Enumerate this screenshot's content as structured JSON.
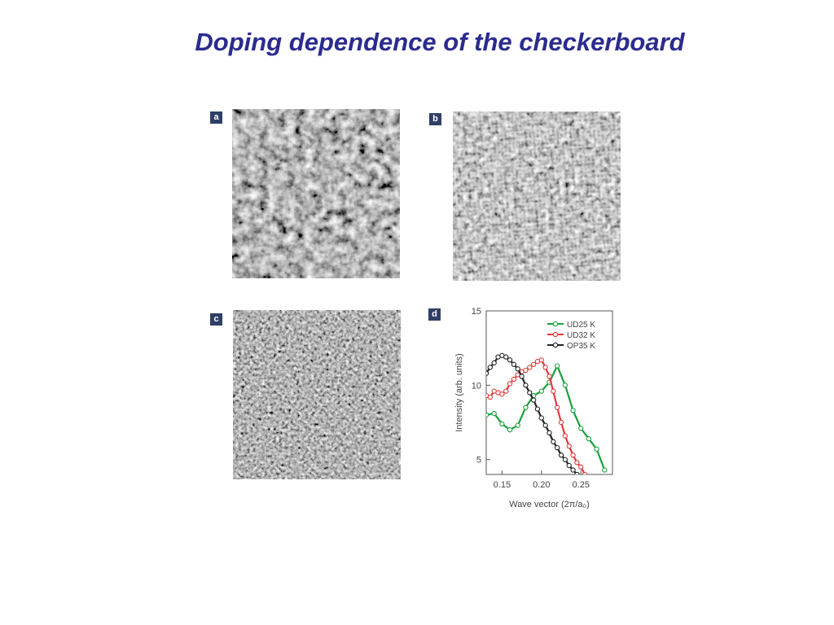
{
  "title": "Doping dependence of the checkerboard",
  "panels": [
    {
      "label": "a",
      "type": "stm-image"
    },
    {
      "label": "b",
      "type": "stm-image"
    },
    {
      "label": "c",
      "type": "stm-image"
    },
    {
      "label": "d",
      "type": "chart"
    }
  ],
  "chart_data": {
    "type": "line",
    "xlabel": "Wave vector (2π/a₀)",
    "ylabel": "Intensity (arb. units)",
    "xlim": [
      0.13,
      0.29
    ],
    "ylim": [
      4,
      15
    ],
    "xticks": [
      "0.15",
      "0.20",
      "0.25"
    ],
    "xtick_values": [
      0.15,
      0.2,
      0.25
    ],
    "yticks": [
      "5",
      "10",
      "15"
    ],
    "ytick_values": [
      5,
      10,
      15
    ],
    "grid": false,
    "legend_position": "top-right",
    "series": [
      {
        "name": "UD25 K",
        "color": "#1aa03c",
        "x": [
          0.13,
          0.14,
          0.15,
          0.16,
          0.17,
          0.18,
          0.19,
          0.2,
          0.21,
          0.22,
          0.23,
          0.24,
          0.25,
          0.26,
          0.27,
          0.28
        ],
        "y": [
          8.0,
          8.1,
          7.4,
          7.0,
          7.3,
          8.5,
          9.3,
          9.6,
          10.2,
          11.3,
          10.0,
          8.3,
          7.1,
          6.4,
          5.7,
          4.3
        ]
      },
      {
        "name": "UD32 K",
        "color": "#e03a3a",
        "x": [
          0.13,
          0.135,
          0.14,
          0.145,
          0.15,
          0.155,
          0.16,
          0.165,
          0.17,
          0.175,
          0.18,
          0.185,
          0.19,
          0.195,
          0.2,
          0.205,
          0.21,
          0.215,
          0.22,
          0.225,
          0.23,
          0.235,
          0.24,
          0.245,
          0.25,
          0.255
        ],
        "y": [
          9.3,
          9.2,
          9.6,
          9.5,
          9.4,
          9.6,
          10.1,
          10.4,
          10.7,
          10.9,
          11.0,
          11.2,
          11.4,
          11.6,
          11.7,
          11.2,
          10.6,
          9.6,
          8.5,
          7.5,
          6.6,
          5.9,
          5.3,
          4.8,
          4.5,
          4.0
        ]
      },
      {
        "name": "OP35 K",
        "color": "#222222",
        "x": [
          0.13,
          0.135,
          0.14,
          0.145,
          0.15,
          0.155,
          0.16,
          0.165,
          0.17,
          0.175,
          0.18,
          0.185,
          0.19,
          0.195,
          0.2,
          0.205,
          0.21,
          0.215,
          0.22,
          0.225,
          0.23,
          0.235,
          0.24,
          0.245
        ],
        "y": [
          10.8,
          11.2,
          11.5,
          11.9,
          12.0,
          11.9,
          11.7,
          11.4,
          11.1,
          10.6,
          10.0,
          9.5,
          9.0,
          8.4,
          7.8,
          7.3,
          6.8,
          6.2,
          5.8,
          5.3,
          5.0,
          4.6,
          4.3,
          4.0
        ]
      }
    ]
  },
  "colors": {
    "title": "#2b2b8f",
    "label_box": "#2f3f66"
  }
}
